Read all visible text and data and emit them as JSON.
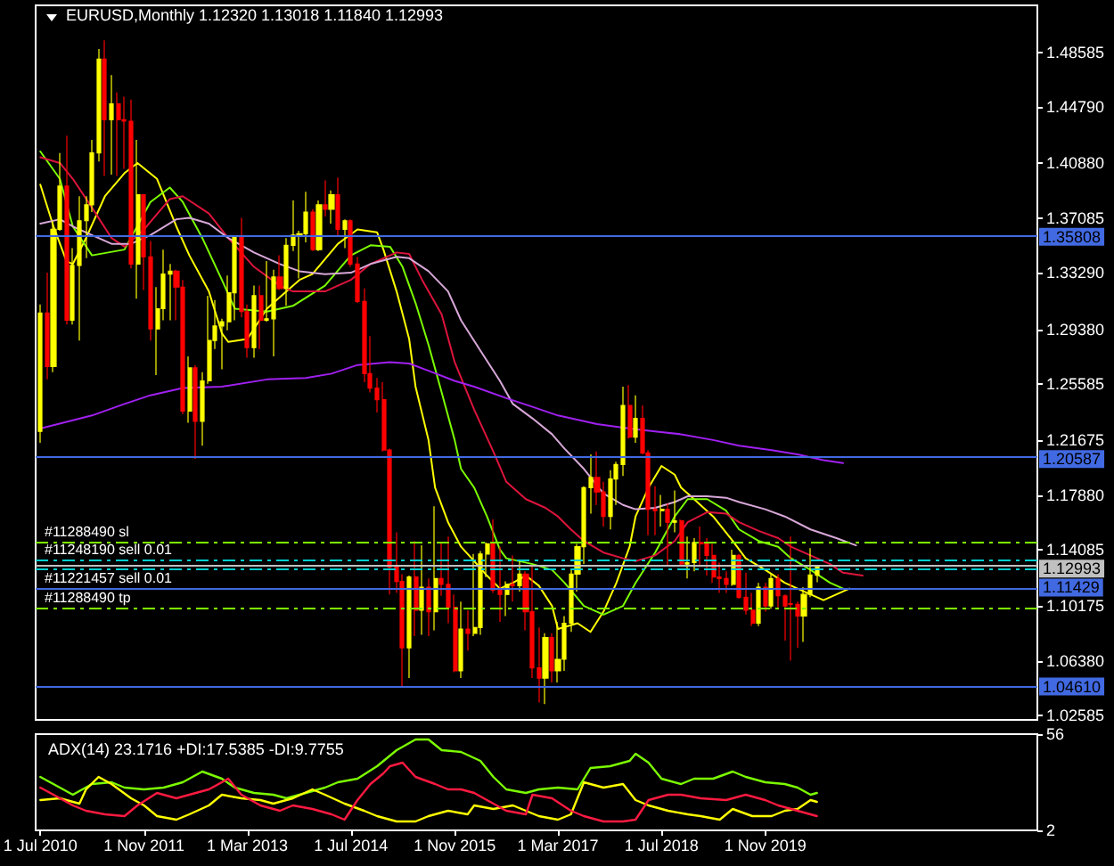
{
  "chart_data": [
    {
      "type": "candlestick",
      "title": "EURUSD,Monthly 1.12320 1.13018 1.11840 1.12993",
      "tick_labels": "y",
      "xlim": [
        "2010-06-09",
        "2023-05-04"
      ],
      "ylim": [
        1.023,
        1.5183
      ],
      "yticks": [
        1.02585,
        {
          "value": 1.0638,
          "label": "1.06380"
        },
        1.10175,
        1.14085,
        {
          "value": 1.1788,
          "label": "1.17880"
        },
        1.21675,
        1.25585,
        {
          "value": 1.2938,
          "label": "1.29380"
        },
        {
          "value": 1.3329,
          "label": "1.33290"
        },
        1.37085,
        {
          "value": 1.4088,
          "label": "1.40880"
        },
        {
          "value": 1.4479,
          "label": "1.44790"
        },
        1.48585
      ],
      "ref_lines": [
        {
          "axis": "y",
          "value": 1.35808,
          "label": "1.35808",
          "color": "#4169e1"
        },
        {
          "axis": "y",
          "value": 1.20587,
          "label": "1.20587",
          "color": "#4169e1"
        },
        {
          "axis": "y",
          "value": 1.12993,
          "label": "1.12993",
          "color": "#c0c0c0"
        },
        {
          "axis": "y",
          "value": 1.11429,
          "label": "1.11429",
          "color": "#4169e1"
        },
        {
          "axis": "y",
          "value": 1.0461,
          "label": "1.04610",
          "color": "#4169e1"
        },
        {
          "axis": "y",
          "value": 1.1464,
          "label": "#11288490 sl",
          "color": "#7fff00",
          "line_style": "dashed"
        },
        {
          "axis": "y",
          "value": 1.1341,
          "label": "#11248190 sell 0.01",
          "color": "#00ced1",
          "line_style": "dashed"
        },
        {
          "axis": "y",
          "value": 1.1279,
          "label": "#11221457 sell 0.01",
          "color": "#00ced1",
          "line_style": "dashed"
        },
        {
          "axis": "y",
          "value": 1.1007,
          "label": "#11288490 tp",
          "color": "#7fff00",
          "line_style": "dashed"
        }
      ],
      "series": [
        {
          "x": [
            "2010-07",
            "2010-08",
            "2010-09",
            "2010-10",
            "2010-11",
            "2010-12",
            "2011-01",
            "2011-02",
            "2011-03",
            "2011-04",
            "2011-05",
            "2011-06",
            "2011-07",
            "2011-08",
            "2011-09",
            "2011-10",
            "2011-11",
            "2011-12",
            "2012-01",
            "2012-02",
            "2012-03",
            "2012-04",
            "2012-05",
            "2012-06",
            "2012-07",
            "2012-08",
            "2012-09",
            "2012-10",
            "2012-11",
            "2012-12",
            "2013-01",
            "2013-02",
            "2013-03",
            "2013-04",
            "2013-05",
            "2013-06",
            "2013-07",
            "2013-08",
            "2013-09",
            "2013-10",
            "2013-11",
            "2013-12",
            "2014-01",
            "2014-02",
            "2014-03",
            "2014-04",
            "2014-05",
            "2014-06",
            "2014-07",
            "2014-08",
            "2014-09",
            "2014-10",
            "2014-11",
            "2014-12",
            "2015-01",
            "2015-02",
            "2015-03",
            "2015-04",
            "2015-05",
            "2015-06",
            "2015-07",
            "2015-08",
            "2015-09",
            "2015-10",
            "2015-11",
            "2015-12",
            "2016-01",
            "2016-02",
            "2016-03",
            "2016-04",
            "2016-05",
            "2016-06",
            "2016-07",
            "2016-08",
            "2016-09",
            "2016-10",
            "2016-11",
            "2016-12",
            "2017-01",
            "2017-02",
            "2017-03",
            "2017-04",
            "2017-05",
            "2017-06",
            "2017-07",
            "2017-08",
            "2017-09",
            "2017-10",
            "2017-11",
            "2017-12",
            "2018-01",
            "2018-02",
            "2018-03",
            "2018-04",
            "2018-05",
            "2018-06",
            "2018-07",
            "2018-08",
            "2018-09",
            "2018-10",
            "2018-11",
            "2018-12",
            "2019-01",
            "2019-02",
            "2019-03",
            "2019-04",
            "2019-05",
            "2019-06",
            "2019-07",
            "2019-08",
            "2019-09",
            "2019-10",
            "2019-11",
            "2019-12",
            "2020-01",
            "2020-02",
            "2020-03",
            "2020-04",
            "2020-05",
            "2020-06",
            "2020-07"
          ],
          "ohlc": [
            [
              1.223,
              1.311,
              1.215,
              1.305
            ],
            [
              1.305,
              1.333,
              1.259,
              1.268
            ],
            [
              1.268,
              1.369,
              1.264,
              1.363
            ],
            [
              1.363,
              1.416,
              1.362,
              1.393
            ],
            [
              1.393,
              1.428,
              1.297,
              1.3
            ],
            [
              1.3,
              1.35,
              1.297,
              1.338
            ],
            [
              1.338,
              1.386,
              1.286,
              1.369
            ],
            [
              1.369,
              1.386,
              1.343,
              1.38
            ],
            [
              1.38,
              1.425,
              1.375,
              1.416
            ],
            [
              1.416,
              1.488,
              1.41,
              1.481
            ],
            [
              1.481,
              1.494,
              1.4,
              1.439
            ],
            [
              1.439,
              1.47,
              1.401,
              1.45
            ],
            [
              1.45,
              1.458,
              1.4,
              1.439
            ],
            [
              1.439,
              1.455,
              1.405,
              1.438
            ],
            [
              1.438,
              1.453,
              1.336,
              1.339
            ],
            [
              1.339,
              1.425,
              1.315,
              1.387
            ],
            [
              1.387,
              1.387,
              1.321,
              1.344
            ],
            [
              1.344,
              1.355,
              1.286,
              1.294
            ],
            [
              1.294,
              1.323,
              1.262,
              1.308
            ],
            [
              1.308,
              1.349,
              1.3,
              1.332
            ],
            [
              1.332,
              1.339,
              1.3,
              1.334
            ],
            [
              1.334,
              1.335,
              1.3,
              1.323
            ],
            [
              1.323,
              1.328,
              1.235,
              1.237
            ],
            [
              1.237,
              1.275,
              1.229,
              1.267
            ],
            [
              1.267,
              1.269,
              1.204,
              1.23
            ],
            [
              1.23,
              1.264,
              1.213,
              1.258
            ],
            [
              1.258,
              1.317,
              1.256,
              1.286
            ],
            [
              1.286,
              1.314,
              1.28,
              1.296
            ],
            [
              1.296,
              1.301,
              1.266,
              1.299
            ],
            [
              1.299,
              1.331,
              1.293,
              1.319
            ],
            [
              1.319,
              1.359,
              1.3,
              1.358
            ],
            [
              1.358,
              1.371,
              1.302,
              1.306
            ],
            [
              1.306,
              1.311,
              1.274,
              1.281
            ],
            [
              1.281,
              1.324,
              1.274,
              1.317
            ],
            [
              1.317,
              1.324,
              1.28,
              1.3
            ],
            [
              1.3,
              1.341,
              1.299,
              1.301
            ],
            [
              1.301,
              1.335,
              1.275,
              1.33
            ],
            [
              1.33,
              1.345,
              1.321,
              1.322
            ],
            [
              1.322,
              1.357,
              1.31,
              1.352
            ],
            [
              1.352,
              1.383,
              1.348,
              1.359
            ],
            [
              1.359,
              1.362,
              1.329,
              1.36
            ],
            [
              1.36,
              1.389,
              1.354,
              1.375
            ],
            [
              1.375,
              1.377,
              1.348,
              1.349
            ],
            [
              1.349,
              1.383,
              1.348,
              1.38
            ],
            [
              1.38,
              1.397,
              1.372,
              1.377
            ],
            [
              1.377,
              1.39,
              1.367,
              1.387
            ],
            [
              1.387,
              1.399,
              1.359,
              1.363
            ],
            [
              1.363,
              1.37,
              1.35,
              1.369
            ],
            [
              1.369,
              1.37,
              1.337,
              1.339
            ],
            [
              1.339,
              1.344,
              1.312,
              1.313
            ],
            [
              1.313,
              1.322,
              1.257,
              1.263
            ],
            [
              1.263,
              1.289,
              1.25,
              1.253
            ],
            [
              1.253,
              1.26,
              1.236,
              1.245
            ],
            [
              1.245,
              1.257,
              1.209,
              1.21
            ],
            [
              1.21,
              1.211,
              1.11,
              1.129
            ],
            [
              1.129,
              1.153,
              1.111,
              1.119
            ],
            [
              1.119,
              1.124,
              1.046,
              1.073
            ],
            [
              1.073,
              1.123,
              1.052,
              1.122
            ],
            [
              1.122,
              1.147,
              1.081,
              1.099
            ],
            [
              1.099,
              1.144,
              1.082,
              1.115
            ],
            [
              1.115,
              1.121,
              1.081,
              1.098
            ],
            [
              1.098,
              1.171,
              1.085,
              1.121
            ],
            [
              1.121,
              1.146,
              1.109,
              1.117
            ],
            [
              1.117,
              1.15,
              1.09,
              1.101
            ],
            [
              1.101,
              1.11,
              1.056,
              1.057
            ],
            [
              1.057,
              1.105,
              1.052,
              1.086
            ],
            [
              1.086,
              1.099,
              1.071,
              1.083
            ],
            [
              1.083,
              1.138,
              1.081,
              1.087
            ],
            [
              1.087,
              1.14,
              1.082,
              1.138
            ],
            [
              1.138,
              1.146,
              1.122,
              1.145
            ],
            [
              1.145,
              1.162,
              1.111,
              1.113
            ],
            [
              1.113,
              1.143,
              1.091,
              1.11
            ],
            [
              1.11,
              1.119,
              1.095,
              1.117
            ],
            [
              1.117,
              1.137,
              1.105,
              1.116
            ],
            [
              1.116,
              1.133,
              1.112,
              1.124
            ],
            [
              1.124,
              1.126,
              1.085,
              1.098
            ],
            [
              1.098,
              1.13,
              1.052,
              1.059
            ],
            [
              1.059,
              1.087,
              1.035,
              1.052
            ],
            [
              1.052,
              1.083,
              1.034,
              1.08
            ],
            [
              1.08,
              1.083,
              1.049,
              1.057
            ],
            [
              1.057,
              1.091,
              1.049,
              1.065
            ],
            [
              1.065,
              1.095,
              1.057,
              1.09
            ],
            [
              1.09,
              1.127,
              1.084,
              1.124
            ],
            [
              1.124,
              1.145,
              1.112,
              1.143
            ],
            [
              1.143,
              1.185,
              1.131,
              1.184
            ],
            [
              1.184,
              1.207,
              1.166,
              1.191
            ],
            [
              1.191,
              1.209,
              1.172,
              1.181
            ],
            [
              1.181,
              1.188,
              1.157,
              1.164
            ],
            [
              1.164,
              1.196,
              1.155,
              1.19
            ],
            [
              1.19,
              1.202,
              1.172,
              1.2
            ],
            [
              1.2,
              1.254,
              1.192,
              1.241
            ],
            [
              1.241,
              1.255,
              1.218,
              1.219
            ],
            [
              1.219,
              1.248,
              1.215,
              1.232
            ],
            [
              1.232,
              1.241,
              1.207,
              1.208
            ],
            [
              1.208,
              1.21,
              1.151,
              1.169
            ],
            [
              1.169,
              1.185,
              1.151,
              1.168
            ],
            [
              1.168,
              1.179,
              1.157,
              1.169
            ],
            [
              1.169,
              1.173,
              1.13,
              1.16
            ],
            [
              1.16,
              1.182,
              1.153,
              1.161
            ],
            [
              1.161,
              1.162,
              1.13,
              1.131
            ],
            [
              1.131,
              1.15,
              1.121,
              1.132
            ],
            [
              1.132,
              1.149,
              1.126,
              1.146
            ],
            [
              1.146,
              1.157,
              1.129,
              1.145
            ],
            [
              1.145,
              1.149,
              1.123,
              1.137
            ],
            [
              1.137,
              1.145,
              1.118,
              1.122
            ],
            [
              1.122,
              1.132,
              1.111,
              1.121
            ],
            [
              1.121,
              1.126,
              1.111,
              1.117
            ],
            [
              1.117,
              1.141,
              1.116,
              1.137
            ],
            [
              1.137,
              1.138,
              1.107,
              1.108
            ],
            [
              1.108,
              1.125,
              1.096,
              1.099
            ],
            [
              1.099,
              1.111,
              1.088,
              1.09
            ],
            [
              1.09,
              1.118,
              1.088,
              1.115
            ],
            [
              1.115,
              1.118,
              1.098,
              1.102
            ],
            [
              1.102,
              1.124,
              1.1,
              1.121
            ],
            [
              1.121,
              1.124,
              1.101,
              1.109
            ],
            [
              1.109,
              1.11,
              1.078,
              1.102
            ],
            [
              1.1035,
              1.15,
              1.064,
              1.103
            ],
            [
              1.103,
              1.105,
              1.073,
              1.095
            ],
            [
              1.095,
              1.115,
              1.077,
              1.11
            ],
            [
              1.11,
              1.142,
              1.108,
              1.1235
            ],
            [
              1.1232,
              1.13018,
              1.1184,
              1.12993
            ]
          ],
          "colors": [
            "#ffff00",
            "#ff0000",
            "#ffff00",
            "#ffff00",
            "#ff0000",
            "#ffff00",
            "#ffff00",
            "#ffff00",
            "#ffff00",
            "#ffff00",
            "#ff0000",
            "#ffff00",
            "#ff0000",
            "#ff0000",
            "#ff0000",
            "#ffff00",
            "#ff0000",
            "#ff0000",
            "#ffff00",
            "#ffff00",
            "#ffff00",
            "#ff0000",
            "#ff0000",
            "#ffff00",
            "#ff0000",
            "#ffff00",
            "#ffff00",
            "#ffff00",
            "#ffff00",
            "#ffff00",
            "#ffff00",
            "#ff0000",
            "#ff0000",
            "#ffff00",
            "#ff0000",
            "#ffff00",
            "#ffff00",
            "#ff0000",
            "#ffff00",
            "#ffff00",
            "#ffff00",
            "#ffff00",
            "#ff0000",
            "#ffff00",
            "#ff0000",
            "#ffff00",
            "#ff0000",
            "#ffff00",
            "#ff0000",
            "#ff0000",
            "#ff0000",
            "#ff0000",
            "#ff0000",
            "#ff0000",
            "#ff0000",
            "#ff0000",
            "#ff0000",
            "#ffff00",
            "#ff0000",
            "#ffff00",
            "#ff0000",
            "#ffff00",
            "#ff0000",
            "#ff0000",
            "#ff0000",
            "#ffff00",
            "#ff0000",
            "#ffff00",
            "#ffff00",
            "#ffff00",
            "#ff0000",
            "#ff0000",
            "#ffff00",
            "#ff0000",
            "#ffff00",
            "#ff0000",
            "#ff0000",
            "#ff0000",
            "#ffff00",
            "#ff0000",
            "#ffff00",
            "#ffff00",
            "#ffff00",
            "#ffff00",
            "#ffff00",
            "#ffff00",
            "#ff0000",
            "#ff0000",
            "#ffff00",
            "#ffff00",
            "#ffff00",
            "#ff0000",
            "#ffff00",
            "#ff0000",
            "#ff0000",
            "#ff0000",
            "#ffff00",
            "#ff0000",
            "#ffff00",
            "#ff0000",
            "#ffff00",
            "#ffff00",
            "#ff0000",
            "#ff0000",
            "#ff0000",
            "#ff0000",
            "#ff0000",
            "#ffff00",
            "#ff0000",
            "#ff0000",
            "#ff0000",
            "#ffff00",
            "#ff0000",
            "#ffff00",
            "#ff0000",
            "#ff0000",
            "#ff0000",
            "#ff0000",
            "#ffff00",
            "#ffff00",
            "#ffff00"
          ]
        },
        {
          "type": "line",
          "color": "#ffff00",
          "x": [
            "2010-07",
            "2010-09",
            "2010-11",
            "2010-12",
            "2011-02",
            "2011-05",
            "2011-08",
            "2011-10",
            "2012-01",
            "2012-04",
            "2012-06",
            "2012-09",
            "2012-11",
            "2012-12",
            "2013-03",
            "2013-06",
            "2013-08",
            "2013-11",
            "2014-01",
            "2014-05",
            "2014-08",
            "2014-11",
            "2014-12",
            "2015-02",
            "2015-04",
            "2015-05",
            "2015-07",
            "2015-08",
            "2015-10",
            "2015-12",
            "2016-02",
            "2016-04",
            "2016-06",
            "2016-08",
            "2016-10",
            "2016-12",
            "2017-02",
            "2017-03",
            "2017-06",
            "2017-08",
            "2017-10",
            "2017-12",
            "2018-02",
            "2018-03",
            "2018-05",
            "2018-07",
            "2018-09",
            "2018-10",
            "2018-12",
            "2019-03",
            "2019-06",
            "2019-08",
            "2019-11",
            "2020-02",
            "2020-04",
            "2020-06",
            "2020-08",
            "2020-10",
            "2020-12"
          ],
          "values": [
            1.394,
            1.365,
            1.341,
            1.339,
            1.357,
            1.386,
            1.402,
            1.409,
            1.398,
            1.365,
            1.345,
            1.32,
            1.291,
            1.285,
            1.287,
            1.308,
            1.316,
            1.328,
            1.332,
            1.353,
            1.363,
            1.361,
            1.349,
            1.32,
            1.287,
            1.254,
            1.217,
            1.184,
            1.16,
            1.143,
            1.133,
            1.123,
            1.114,
            1.118,
            1.123,
            1.116,
            1.102,
            1.086,
            1.09,
            1.084,
            1.098,
            1.118,
            1.143,
            1.164,
            1.184,
            1.199,
            1.193,
            1.184,
            1.176,
            1.164,
            1.147,
            1.135,
            1.127,
            1.118,
            1.114,
            1.11,
            1.106,
            1.11,
            1.114
          ]
        },
        {
          "type": "line",
          "color": "#7cfc00",
          "x": [
            "2010-07",
            "2010-10",
            "2010-12",
            "2011-03",
            "2011-08",
            "2011-12",
            "2012-03",
            "2012-05",
            "2012-08",
            "2012-11",
            "2013-01",
            "2013-06",
            "2013-10",
            "2014-03",
            "2014-07",
            "2014-10",
            "2015-01",
            "2015-03",
            "2015-05",
            "2015-07",
            "2015-09",
            "2015-11",
            "2015-12",
            "2016-02",
            "2016-04",
            "2016-06",
            "2016-07",
            "2016-09",
            "2016-11",
            "2017-02",
            "2017-04",
            "2017-07",
            "2017-10",
            "2018-01",
            "2018-03",
            "2018-06",
            "2018-09",
            "2018-11",
            "2019-02",
            "2019-05",
            "2019-07",
            "2019-10",
            "2020-01",
            "2020-03",
            "2020-06",
            "2020-09",
            "2020-11"
          ],
          "values": [
            1.417,
            1.398,
            1.365,
            1.345,
            1.349,
            1.382,
            1.392,
            1.382,
            1.357,
            1.328,
            1.308,
            1.306,
            1.31,
            1.324,
            1.345,
            1.352,
            1.351,
            1.337,
            1.312,
            1.283,
            1.25,
            1.217,
            1.197,
            1.184,
            1.164,
            1.141,
            1.135,
            1.133,
            1.131,
            1.127,
            1.118,
            1.102,
            1.096,
            1.102,
            1.118,
            1.139,
            1.164,
            1.176,
            1.176,
            1.168,
            1.155,
            1.147,
            1.143,
            1.135,
            1.127,
            1.118,
            1.114
          ]
        },
        {
          "type": "line",
          "color": "#dc143c",
          "x": [
            "2010-07",
            "2010-10",
            "2010-12",
            "2011-03",
            "2011-06",
            "2011-08",
            "2011-11",
            "2012-03",
            "2012-05",
            "2012-09",
            "2012-12",
            "2013-04",
            "2013-08",
            "2013-10",
            "2014-03",
            "2014-07",
            "2014-10",
            "2015-02",
            "2015-04",
            "2015-06",
            "2015-09",
            "2015-11",
            "2016-02",
            "2016-05",
            "2016-07",
            "2016-10",
            "2017-01",
            "2017-03",
            "2017-05",
            "2017-07",
            "2017-10",
            "2018-01",
            "2018-03",
            "2018-06",
            "2018-09",
            "2018-11",
            "2019-02",
            "2019-05",
            "2019-07",
            "2019-10",
            "2020-01",
            "2020-03",
            "2020-06",
            "2020-09",
            "2020-11",
            "2021-02"
          ],
          "values": [
            1.413,
            1.409,
            1.398,
            1.378,
            1.357,
            1.351,
            1.363,
            1.384,
            1.386,
            1.374,
            1.357,
            1.337,
            1.324,
            1.32,
            1.32,
            1.328,
            1.339,
            1.347,
            1.346,
            1.328,
            1.304,
            1.271,
            1.238,
            1.209,
            1.188,
            1.176,
            1.17,
            1.164,
            1.155,
            1.147,
            1.139,
            1.135,
            1.133,
            1.137,
            1.147,
            1.16,
            1.167,
            1.166,
            1.16,
            1.154,
            1.149,
            1.143,
            1.137,
            1.131,
            1.125,
            1.123
          ]
        },
        {
          "type": "line",
          "color": "#d8a8d8",
          "x": [
            "2010-07",
            "2010-10",
            "2010-12",
            "2011-03",
            "2011-06",
            "2011-09",
            "2011-12",
            "2012-04",
            "2012-06",
            "2012-09",
            "2012-12",
            "2013-04",
            "2013-08",
            "2013-11",
            "2014-03",
            "2014-07",
            "2014-10",
            "2015-02",
            "2015-04",
            "2015-07",
            "2015-10",
            "2015-12",
            "2016-03",
            "2016-06",
            "2016-08",
            "2016-11",
            "2017-02",
            "2017-04",
            "2017-07",
            "2017-10",
            "2018-01",
            "2018-03",
            "2018-06",
            "2018-09",
            "2018-11",
            "2019-02",
            "2019-05",
            "2019-07",
            "2019-11",
            "2020-02",
            "2020-06",
            "2020-10",
            "2021-01"
          ],
          "values": [
            1.367,
            1.37,
            1.365,
            1.359,
            1.353,
            1.353,
            1.359,
            1.37,
            1.371,
            1.367,
            1.357,
            1.347,
            1.339,
            1.334,
            1.332,
            1.333,
            1.339,
            1.344,
            1.343,
            1.334,
            1.32,
            1.3,
            1.279,
            1.258,
            1.242,
            1.232,
            1.221,
            1.211,
            1.197,
            1.18,
            1.172,
            1.169,
            1.17,
            1.174,
            1.178,
            1.178,
            1.177,
            1.174,
            1.169,
            1.164,
            1.155,
            1.149,
            1.144
          ]
        },
        {
          "type": "line",
          "color": "#a020f0",
          "x": [
            "2010-07",
            "2011-03",
            "2011-08",
            "2011-12",
            "2012-05",
            "2012-11",
            "2013-06",
            "2013-12",
            "2014-04",
            "2014-08",
            "2015-01",
            "2015-04",
            "2015-07",
            "2015-11",
            "2016-02",
            "2016-07",
            "2016-11",
            "2017-03",
            "2017-09",
            "2018-02",
            "2018-06",
            "2018-10",
            "2019-03",
            "2019-07",
            "2019-12",
            "2020-04",
            "2020-08",
            "2020-11"
          ],
          "values": [
            1.225,
            1.234,
            1.242,
            1.248,
            1.253,
            1.254,
            1.259,
            1.26,
            1.263,
            1.269,
            1.271,
            1.27,
            1.265,
            1.258,
            1.254,
            1.246,
            1.24,
            1.234,
            1.228,
            1.225,
            1.223,
            1.221,
            1.217,
            1.213,
            1.21,
            1.207,
            1.203,
            1.201
          ]
        }
      ]
    },
    {
      "type": "line",
      "title": "ADX(14) 23.1716 +DI:17.5385 -DI:9.7755",
      "xlim": [
        "2010-06-09",
        "2023-05-04"
      ],
      "ylim": [
        2,
        56
      ],
      "yticks": [
        2,
        56
      ],
      "xticks": [
        {
          "value": "2010-07-01",
          "label": "1 Jul 2010"
        },
        {
          "value": "2011-11-01",
          "label": "1 Nov 2011"
        },
        {
          "value": "2013-03-01",
          "label": "1 Mar 2013"
        },
        {
          "value": "2014-07-01",
          "label": "1 Jul 2014"
        },
        {
          "value": "2015-11-01",
          "label": "1 Nov 2015"
        },
        {
          "value": "2017-03-01",
          "label": "1 Mar 2017"
        },
        {
          "value": "2018-07-01",
          "label": "1 Jul 2018"
        },
        {
          "value": "2019-11-01",
          "label": "1 Nov 2019"
        }
      ],
      "series": [
        {
          "color": "#7cfc00",
          "x": [
            "2010-07",
            "2010-10",
            "2010-12",
            "2011-03",
            "2011-06",
            "2011-08",
            "2011-11",
            "2012-02",
            "2012-05",
            "2012-08",
            "2012-11",
            "2013-01",
            "2013-04",
            "2013-07",
            "2013-09",
            "2013-12",
            "2014-03",
            "2014-05",
            "2014-08",
            "2014-11",
            "2015-02",
            "2015-05",
            "2015-07",
            "2015-09",
            "2015-12",
            "2016-03",
            "2016-05",
            "2016-07",
            "2016-10",
            "2016-12",
            "2017-03",
            "2017-06",
            "2017-08",
            "2017-11",
            "2018-02",
            "2018-03",
            "2018-05",
            "2018-07",
            "2018-10",
            "2018-12",
            "2019-03",
            "2019-06",
            "2019-08",
            "2019-11",
            "2020-02",
            "2020-04",
            "2020-06",
            "2020-07"
          ],
          "values": [
            32,
            26,
            22,
            28,
            29,
            26,
            25,
            26,
            29,
            35,
            31,
            26,
            23,
            22,
            20,
            23,
            26,
            29,
            31,
            38,
            47,
            53,
            53,
            47,
            46,
            41,
            32,
            25,
            23,
            25,
            26,
            25,
            37,
            38,
            41,
            45,
            40,
            31,
            28,
            31,
            31,
            35,
            32,
            29,
            28,
            26,
            22,
            23
          ]
        },
        {
          "color": "#ffff00",
          "x": [
            "2010-07",
            "2010-10",
            "2011-01",
            "2011-02",
            "2011-04",
            "2011-06",
            "2011-09",
            "2011-11",
            "2012-01",
            "2012-04",
            "2012-06",
            "2012-09",
            "2012-11",
            "2013-02",
            "2013-05",
            "2013-07",
            "2013-10",
            "2014-01",
            "2014-03",
            "2014-06",
            "2014-09",
            "2014-11",
            "2015-02",
            "2015-05",
            "2015-07",
            "2015-10",
            "2016-01",
            "2016-02",
            "2016-05",
            "2016-08",
            "2016-10",
            "2016-12",
            "2017-03",
            "2017-05",
            "2017-07",
            "2017-10",
            "2018-01",
            "2018-03",
            "2018-05",
            "2018-08",
            "2018-11",
            "2019-01",
            "2019-04",
            "2019-06",
            "2019-09",
            "2019-12",
            "2020-02",
            "2020-04",
            "2020-06",
            "2020-07"
          ],
          "values": [
            19,
            20,
            17,
            25,
            32,
            28,
            20,
            16,
            10,
            8,
            11,
            16,
            22,
            20,
            19,
            17,
            20,
            25,
            22,
            17,
            13,
            10,
            7,
            7,
            10,
            13,
            11,
            16,
            14,
            16,
            13,
            10,
            8,
            11,
            29,
            26,
            28,
            19,
            16,
            13,
            11,
            10,
            8,
            14,
            10,
            10,
            13,
            14,
            19,
            18
          ]
        },
        {
          "color": "#ff1a40",
          "x": [
            "2010-07",
            "2010-09",
            "2010-12",
            "2011-02",
            "2011-05",
            "2011-08",
            "2011-10",
            "2012-01",
            "2012-04",
            "2012-06",
            "2012-09",
            "2012-12",
            "2013-02",
            "2013-05",
            "2013-08",
            "2013-10",
            "2014-01",
            "2014-04",
            "2014-06",
            "2014-08",
            "2014-10",
            "2014-12",
            "2015-01",
            "2015-03",
            "2015-05",
            "2015-08",
            "2015-10",
            "2015-12",
            "2016-02",
            "2016-04",
            "2016-07",
            "2016-10",
            "2016-11",
            "2017-02",
            "2017-05",
            "2017-07",
            "2017-10",
            "2018-01",
            "2018-03",
            "2018-05",
            "2018-08",
            "2018-10",
            "2019-01",
            "2019-05",
            "2019-08",
            "2019-11",
            "2020-01",
            "2020-04",
            "2020-07"
          ],
          "values": [
            26,
            22,
            16,
            13,
            11,
            10,
            16,
            23,
            20,
            22,
            25,
            31,
            22,
            16,
            13,
            16,
            14,
            11,
            8,
            19,
            28,
            34,
            38,
            40,
            32,
            28,
            25,
            25,
            23,
            19,
            13,
            11,
            22,
            20,
            13,
            10,
            7,
            7,
            8,
            19,
            22,
            22,
            20,
            19,
            22,
            19,
            16,
            13,
            10
          ]
        }
      ]
    }
  ]
}
